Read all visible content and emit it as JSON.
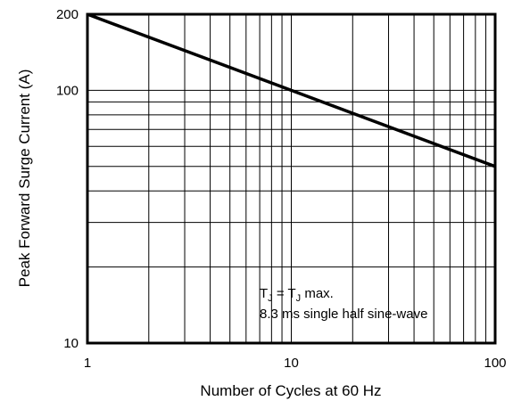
{
  "chart_data": {
    "type": "line",
    "xscale": "log",
    "yscale": "log",
    "xlim": [
      1,
      100
    ],
    "ylim": [
      10,
      200
    ],
    "xlabel": "Number of Cycles at 60 Hz",
    "ylabel": "Peak Forward Surge Current (A)",
    "x_ticks": [
      1,
      10,
      100
    ],
    "x_tick_labels": [
      "1",
      "10",
      "100"
    ],
    "y_ticks": [
      10,
      100,
      200
    ],
    "y_tick_labels": [
      "10",
      "100",
      "200"
    ],
    "grid": true,
    "series": [
      {
        "x": [
          1,
          100
        ],
        "y": [
          200,
          50
        ]
      }
    ],
    "annotation": {
      "line1_main": "T",
      "line1_sub1": "J",
      "line1_mid": " = T",
      "line1_sub2": "J",
      "line1_end": " max.",
      "line2": "8.3 ms single half sine-wave"
    }
  }
}
